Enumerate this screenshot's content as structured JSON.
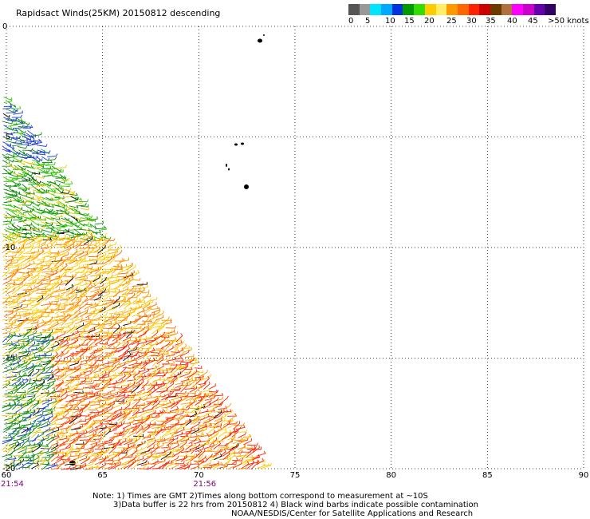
{
  "title": "Rapidsact Winds(25KM) 20150812 descending",
  "colorbar": {
    "colors": [
      "#555555",
      "#999999",
      "#00e5ff",
      "#00a8ff",
      "#0033dd",
      "#009900",
      "#33dd00",
      "#ffcc00",
      "#ffee66",
      "#ff9900",
      "#ff6600",
      "#ff2200",
      "#cc0000",
      "#6b3b00",
      "#b07040",
      "#ff00ff",
      "#cc00cc",
      "#6600aa",
      "#330066"
    ],
    "labels": [
      "0",
      "5",
      "10",
      "15",
      "20",
      "25",
      "30",
      "35",
      "40",
      "45",
      ">50 knots"
    ]
  },
  "axes": {
    "lon_ticks": [
      "60",
      "65",
      "70",
      "75",
      "80",
      "85",
      "90"
    ],
    "lat_ticks": [
      "0",
      "-5",
      "-10",
      "-15",
      "-20"
    ],
    "lon_range": [
      60,
      90
    ],
    "lat_range": [
      -20,
      0
    ]
  },
  "time_labels": [
    {
      "lon": 60,
      "text": "21:54"
    },
    {
      "lon": 70,
      "text": "21:56"
    }
  ],
  "notes": [
    "Note: 1) Times are GMT 2)Times along bottom correspond to measurement at ~10S",
    "3)Data buffer is 22 hrs from 20150812 4) Black wind barbs indicate possible contamination",
    "NOAA/NESDIS/Center for Satellite Applications and Research"
  ],
  "swath_color_scale": [
    "#1f3fd6",
    "#0a8a0a",
    "#33cc00",
    "#e6c800",
    "#ffcc00",
    "#ff9900",
    "#ff6600",
    "#ff2200",
    "#000000"
  ]
}
